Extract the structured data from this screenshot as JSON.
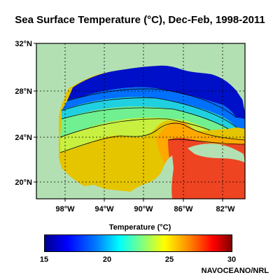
{
  "title": "Sea Surface Temperature (°C), Dec-Feb, 1998-2011",
  "lat_labels": [
    "32°N",
    "28°N",
    "24°N",
    "20°N"
  ],
  "lon_labels": [
    "98°W",
    "94°W",
    "90°W",
    "86°W",
    "82°W"
  ],
  "colorbar": {
    "label": "Temperature (°C)",
    "ticks": [
      "15",
      "20",
      "25",
      "30"
    ],
    "min": 15,
    "max": 30
  },
  "credit": "NAVOCEANO/NRL",
  "colors": {
    "land": "#b3e0b3",
    "coolest": "#0000c8",
    "warmest": "#ee4422"
  }
}
